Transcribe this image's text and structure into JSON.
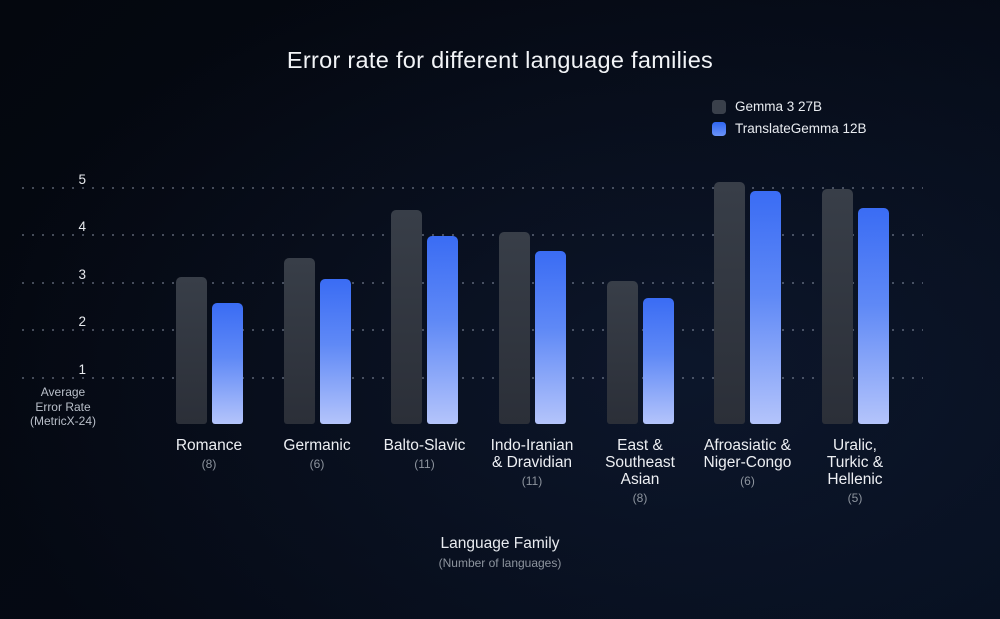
{
  "title": "Error rate for different language families",
  "legend": {
    "items": [
      {
        "label": "Gemma 3 27B",
        "swatch": "gray-swatch",
        "color": "#3a404b"
      },
      {
        "label": "TranslateGemma 12B",
        "swatch": "blue-swatch",
        "color": "#3a6cf4"
      }
    ]
  },
  "y_axis": {
    "caption_line1": "Average",
    "caption_line2": "Error Rate",
    "caption_line3": "(MetricX-24)"
  },
  "x_axis": {
    "caption": "Language Family",
    "subcaption": "(Number of languages)"
  },
  "colors": {
    "background": "#050a15",
    "gemma_bar": "#31363f",
    "translategemma_bar_top": "#3a6cf4",
    "translategemma_bar_bottom": "#b4c4fb",
    "text_primary": "#f2f4f7",
    "text_muted": "#8d949e"
  },
  "chart_data": {
    "type": "bar",
    "title": "Error rate for different language families",
    "categories": [
      "Romance",
      "Germanic",
      "Balto-Slavic",
      "Indo-Iranian & Dravidian",
      "East & Southeast Asian",
      "Afroasiatic & Niger-Congo",
      "Uralic, Turkic & Hellenic"
    ],
    "category_lines": [
      [
        "Romance"
      ],
      [
        "Germanic"
      ],
      [
        "Balto-Slavic"
      ],
      [
        "Indo-Iranian",
        "& Dravidian"
      ],
      [
        "East &",
        "Southeast",
        "Asian"
      ],
      [
        "Afroasiatic &",
        "Niger-Congo"
      ],
      [
        "Uralic,",
        "Turkic &",
        "Hellenic"
      ]
    ],
    "category_counts": [
      "(8)",
      "(6)",
      "(11)",
      "(11)",
      "(8)",
      "(6)",
      "(5)"
    ],
    "series": [
      {
        "name": "Gemma 3 27B",
        "values": [
          3.1,
          3.5,
          4.5,
          4.05,
          3.0,
          5.1,
          4.95
        ]
      },
      {
        "name": "TranslateGemma 12B",
        "values": [
          2.55,
          3.05,
          3.95,
          3.65,
          2.65,
          4.9,
          4.55
        ]
      }
    ],
    "xlabel": "Language Family",
    "xlabel_sub": "(Number of languages)",
    "ylabel": "Average Error Rate (MetricX-24)",
    "ylim": [
      0,
      5
    ],
    "yticks": [
      1,
      2,
      3,
      4,
      5
    ],
    "grid": "dotted-horizontal",
    "legend_position": "top-right"
  }
}
